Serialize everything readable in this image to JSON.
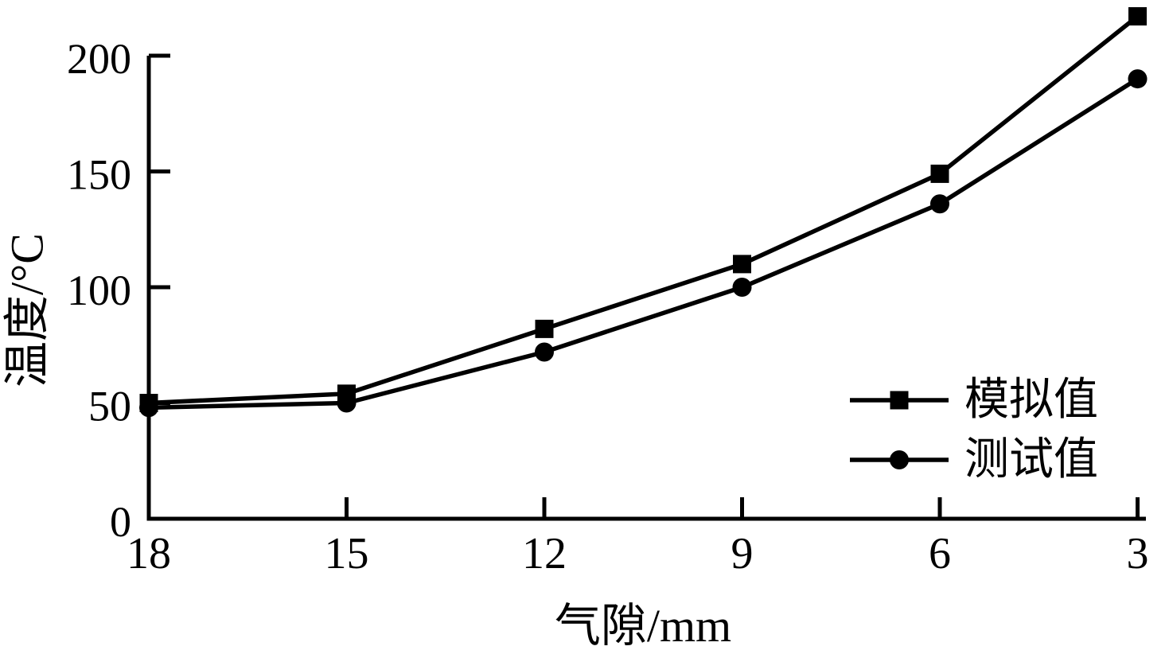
{
  "chart_data": {
    "type": "line",
    "title": "",
    "xlabel": "气隙/mm",
    "ylabel": "温度/°C",
    "categories": [
      "18",
      "15",
      "12",
      "9",
      "6",
      "3"
    ],
    "x_note": "x axis is air gap in mm, ordered descending 18 to 3",
    "yticks": [
      0,
      50,
      100,
      150,
      200
    ],
    "ylim": [
      0,
      200
    ],
    "grid": false,
    "legend_position": "inside-right-middle",
    "series": [
      {
        "name": "模拟值",
        "marker": "square",
        "color": "#000000",
        "values": [
          50,
          54,
          82,
          110,
          149,
          217
        ]
      },
      {
        "name": "测试值",
        "marker": "circle",
        "color": "#000000",
        "values": [
          48,
          50,
          72,
          100,
          136,
          190
        ]
      }
    ]
  },
  "colors": {
    "foreground": "#000000",
    "background": "#ffffff"
  }
}
